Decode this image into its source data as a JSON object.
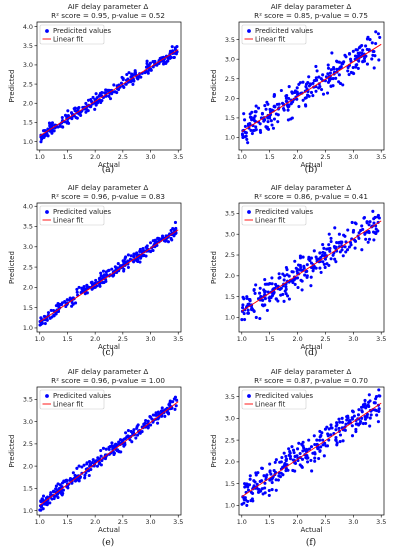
{
  "panel_labels": [
    "(a)",
    "(b)",
    "(c)",
    "(d)",
    "(e)",
    "(f)"
  ],
  "chart_data": [
    {
      "type": "scatter",
      "title": "AIF delay parameter Δ",
      "subtitle": "R² score = 0.95, p-value = 0.52",
      "xlabel": "Actual",
      "ylabel": "Predicted",
      "xlim": [
        0.95,
        3.55
      ],
      "ylim": [
        0.78,
        4.12
      ],
      "xticks": [
        1.0,
        1.5,
        2.0,
        2.5,
        3.0,
        3.5
      ],
      "yticks": [
        1.0,
        1.5,
        2.0,
        2.5,
        3.0,
        3.5,
        4.0
      ],
      "legend": [
        "Predicited values",
        "Linear fit"
      ],
      "legend_position": "top-left",
      "fit_line": {
        "x": [
          1.0,
          3.5
        ],
        "y": [
          1.15,
          3.4
        ]
      },
      "series_colors": {
        "points": "#0000ff",
        "fit": "#ff0000"
      },
      "noise": 0.12,
      "x": [
        1.02,
        1.05,
        1.09,
        1.12,
        1.15,
        1.19,
        1.22,
        1.26,
        1.3,
        1.33,
        1.37,
        1.41,
        1.45,
        1.5,
        1.54,
        1.58,
        1.62,
        1.67,
        1.71,
        1.76,
        1.8,
        1.85,
        1.9,
        1.95,
        2.0,
        2.05,
        2.1,
        2.15,
        2.2,
        2.25,
        2.3,
        2.35,
        2.4,
        2.45,
        2.5,
        2.55,
        2.6,
        2.65,
        2.7,
        2.75,
        2.8,
        2.85,
        2.9,
        2.95,
        3.0,
        3.05,
        3.1,
        3.15,
        3.2,
        3.25,
        3.3,
        3.35,
        3.4,
        3.45
      ],
      "y": [
        1.12,
        1.1,
        1.18,
        1.22,
        1.15,
        1.3,
        1.26,
        1.28,
        1.42,
        1.38,
        1.4,
        1.55,
        1.52,
        1.58,
        1.62,
        1.6,
        1.7,
        1.75,
        1.72,
        1.8,
        1.85,
        1.82,
        1.92,
        1.98,
        2.0,
        2.05,
        2.02,
        2.15,
        2.2,
        2.18,
        2.25,
        2.3,
        2.38,
        2.42,
        2.45,
        2.5,
        2.55,
        2.6,
        2.58,
        2.72,
        2.7,
        2.78,
        2.8,
        2.82,
        2.9,
        2.95,
        3.0,
        3.05,
        3.1,
        3.15,
        3.2,
        3.25,
        3.3,
        3.4
      ]
    },
    {
      "type": "scatter",
      "title": "AIF delay parameter Δ",
      "subtitle": "R² score = 0.85, p-value = 0.75",
      "xlabel": "Actual",
      "ylabel": "Predicted",
      "xlim": [
        0.95,
        3.55
      ],
      "ylim": [
        0.68,
        3.95
      ],
      "xticks": [
        1.0,
        1.5,
        2.0,
        2.5,
        3.0,
        3.5
      ],
      "yticks": [
        1.0,
        1.5,
        2.0,
        2.5,
        3.0,
        3.5
      ],
      "legend": [
        "Predicited values",
        "Linear fit"
      ],
      "legend_position": "top-left",
      "fit_line": {
        "x": [
          1.0,
          3.5
        ],
        "y": [
          1.15,
          3.38
        ]
      },
      "series_colors": {
        "points": "#0000ff",
        "fit": "#ff0000"
      },
      "noise": 0.3,
      "x": [
        1.02,
        1.05,
        1.09,
        1.12,
        1.15,
        1.19,
        1.22,
        1.26,
        1.3,
        1.33,
        1.37,
        1.41,
        1.45,
        1.5,
        1.54,
        1.58,
        1.62,
        1.67,
        1.71,
        1.76,
        1.8,
        1.85,
        1.9,
        1.95,
        2.0,
        2.05,
        2.1,
        2.15,
        2.2,
        2.25,
        2.3,
        2.35,
        2.4,
        2.45,
        2.5,
        2.55,
        2.6,
        2.65,
        2.7,
        2.75,
        2.8,
        2.85,
        2.9,
        2.95,
        3.0,
        3.05,
        3.1,
        3.15,
        3.2,
        3.25,
        3.3,
        3.35,
        3.4,
        3.45
      ],
      "y": [
        1.0,
        1.45,
        0.95,
        1.3,
        1.6,
        1.1,
        1.5,
        1.2,
        1.75,
        1.35,
        1.6,
        1.45,
        1.9,
        1.55,
        1.7,
        2.05,
        1.6,
        1.85,
        2.2,
        1.7,
        2.0,
        2.3,
        1.9,
        2.15,
        2.1,
        2.4,
        1.95,
        2.3,
        2.55,
        2.15,
        2.45,
        2.7,
        2.3,
        2.6,
        2.45,
        2.85,
        2.5,
        2.75,
        2.95,
        2.6,
        2.9,
        3.1,
        2.7,
        3.0,
        3.2,
        2.85,
        3.1,
        3.35,
        2.95,
        3.25,
        3.5,
        3.1,
        3.4,
        3.65
      ]
    },
    {
      "type": "scatter",
      "title": "AIF delay parameter Δ",
      "subtitle": "R² score = 0.96, p-value = 0.83",
      "xlabel": "Actual",
      "ylabel": "Predicted",
      "xlim": [
        0.95,
        3.55
      ],
      "ylim": [
        0.9,
        4.08
      ],
      "xticks": [
        1.0,
        1.5,
        2.0,
        2.5,
        3.0,
        3.5
      ],
      "yticks": [
        1.0,
        1.5,
        2.0,
        2.5,
        3.0,
        3.5,
        4.0
      ],
      "legend": [
        "Predicited values",
        "Linear fit"
      ],
      "legend_position": "top-left",
      "fit_line": {
        "x": [
          1.0,
          3.5
        ],
        "y": [
          1.15,
          3.42
        ]
      },
      "series_colors": {
        "points": "#0000ff",
        "fit": "#ff0000"
      },
      "noise": 0.1,
      "x": [
        1.02,
        1.05,
        1.09,
        1.12,
        1.15,
        1.19,
        1.22,
        1.26,
        1.3,
        1.33,
        1.37,
        1.41,
        1.45,
        1.5,
        1.54,
        1.58,
        1.62,
        1.67,
        1.71,
        1.76,
        1.8,
        1.85,
        1.9,
        1.95,
        2.0,
        2.05,
        2.1,
        2.15,
        2.2,
        2.25,
        2.3,
        2.35,
        2.4,
        2.45,
        2.5,
        2.55,
        2.6,
        2.65,
        2.7,
        2.75,
        2.8,
        2.85,
        2.9,
        2.95,
        3.0,
        3.05,
        3.1,
        3.15,
        3.2,
        3.25,
        3.3,
        3.35,
        3.4,
        3.45
      ],
      "y": [
        1.25,
        1.2,
        1.28,
        1.22,
        1.3,
        1.24,
        1.27,
        1.3,
        1.55,
        1.6,
        1.58,
        1.62,
        1.65,
        1.6,
        1.68,
        1.7,
        1.72,
        1.95,
        2.0,
        1.98,
        2.02,
        2.05,
        2.0,
        2.08,
        2.1,
        2.12,
        2.35,
        2.4,
        2.38,
        2.42,
        2.45,
        2.4,
        2.48,
        2.5,
        2.52,
        2.75,
        2.8,
        2.78,
        2.82,
        2.85,
        2.8,
        2.88,
        2.9,
        2.92,
        3.1,
        3.15,
        3.12,
        3.18,
        3.2,
        3.15,
        3.22,
        3.3,
        3.45,
        3.6
      ]
    },
    {
      "type": "scatter",
      "title": "AIF delay parameter Δ",
      "subtitle": "R² score = 0.86, p-value = 0.41",
      "xlabel": "Actual",
      "ylabel": "Predicted",
      "xlim": [
        0.95,
        3.55
      ],
      "ylim": [
        0.65,
        3.75
      ],
      "xticks": [
        1.0,
        1.5,
        2.0,
        2.5,
        3.0,
        3.5
      ],
      "yticks": [
        1.0,
        1.5,
        2.0,
        2.5,
        3.0,
        3.5
      ],
      "legend": [
        "Predicited values",
        "Linear fit"
      ],
      "legend_position": "top-left",
      "fit_line": {
        "x": [
          1.0,
          3.5
        ],
        "y": [
          1.15,
          3.32
        ]
      },
      "series_colors": {
        "points": "#0000ff",
        "fit": "#ff0000"
      },
      "noise": 0.28,
      "x": [
        1.02,
        1.05,
        1.09,
        1.12,
        1.15,
        1.19,
        1.22,
        1.26,
        1.3,
        1.33,
        1.37,
        1.41,
        1.45,
        1.5,
        1.54,
        1.58,
        1.62,
        1.67,
        1.71,
        1.76,
        1.8,
        1.85,
        1.9,
        1.95,
        2.0,
        2.05,
        2.1,
        2.15,
        2.2,
        2.25,
        2.3,
        2.35,
        2.4,
        2.45,
        2.5,
        2.55,
        2.6,
        2.65,
        2.7,
        2.75,
        2.8,
        2.85,
        2.9,
        2.95,
        3.0,
        3.05,
        3.1,
        3.15,
        3.2,
        3.25,
        3.3,
        3.35,
        3.4,
        3.45
      ],
      "y": [
        1.3,
        0.95,
        1.5,
        1.1,
        1.4,
        1.2,
        1.65,
        1.0,
        1.45,
        1.7,
        1.3,
        1.55,
        1.8,
        1.4,
        1.95,
        1.6,
        1.75,
        2.05,
        1.7,
        1.9,
        2.2,
        1.85,
        2.1,
        2.35,
        1.95,
        2.25,
        2.45,
        2.1,
        2.4,
        2.2,
        2.6,
        2.35,
        2.55,
        2.75,
        2.4,
        2.65,
        2.9,
        2.55,
        2.8,
        3.0,
        2.7,
        2.95,
        3.1,
        2.8,
        3.05,
        3.25,
        2.9,
        3.2,
        3.4,
        3.05,
        3.3,
        3.55,
        3.2,
        3.45
      ]
    },
    {
      "type": "scatter",
      "title": "AIF delay parameter Δ",
      "subtitle": "R² score = 0.96, p-value = 1.00",
      "xlabel": "Actual",
      "ylabel": "Predicted",
      "xlim": [
        0.95,
        3.55
      ],
      "ylim": [
        0.9,
        3.78
      ],
      "xticks": [
        1.0,
        1.5,
        2.0,
        2.5,
        3.0,
        3.5
      ],
      "yticks": [
        1.0,
        1.5,
        2.0,
        2.5,
        3.0,
        3.5
      ],
      "legend": [
        "Predicited values",
        "Linear fit"
      ],
      "legend_position": "top-left",
      "fit_line": {
        "x": [
          1.0,
          3.5
        ],
        "y": [
          1.12,
          3.45
        ]
      },
      "series_colors": {
        "points": "#0000ff",
        "fit": "#ff0000"
      },
      "noise": 0.1,
      "x": [
        1.02,
        1.05,
        1.09,
        1.12,
        1.15,
        1.19,
        1.22,
        1.26,
        1.3,
        1.33,
        1.37,
        1.41,
        1.45,
        1.5,
        1.54,
        1.58,
        1.62,
        1.67,
        1.71,
        1.76,
        1.8,
        1.85,
        1.9,
        1.95,
        2.0,
        2.05,
        2.1,
        2.15,
        2.2,
        2.25,
        2.3,
        2.35,
        2.4,
        2.45,
        2.5,
        2.55,
        2.6,
        2.65,
        2.7,
        2.75,
        2.8,
        2.85,
        2.9,
        2.95,
        3.0,
        3.05,
        3.1,
        3.15,
        3.2,
        3.25,
        3.3,
        3.35,
        3.4,
        3.45
      ],
      "y": [
        1.2,
        1.25,
        1.22,
        1.28,
        1.24,
        1.3,
        1.26,
        1.27,
        1.55,
        1.6,
        1.58,
        1.62,
        1.65,
        1.6,
        1.68,
        1.7,
        1.72,
        1.95,
        2.0,
        1.98,
        2.02,
        2.05,
        2.0,
        2.08,
        2.1,
        2.12,
        2.35,
        2.4,
        2.38,
        2.42,
        2.45,
        2.4,
        2.48,
        2.5,
        2.52,
        2.75,
        2.8,
        2.78,
        2.82,
        2.85,
        2.8,
        2.88,
        2.9,
        2.92,
        3.1,
        3.15,
        3.2,
        3.18,
        3.22,
        3.25,
        3.3,
        3.35,
        3.45,
        3.55
      ]
    },
    {
      "type": "scatter",
      "title": "AIF delay parameter Δ",
      "subtitle": "R² score = 0.87, p-value = 0.70",
      "xlabel": "Actual",
      "ylabel": "Predicted",
      "xlim": [
        0.95,
        3.55
      ],
      "ylim": [
        0.78,
        3.72
      ],
      "xticks": [
        1.0,
        1.5,
        2.0,
        2.5,
        3.0,
        3.5
      ],
      "yticks": [
        1.0,
        1.5,
        2.0,
        2.5,
        3.0,
        3.5
      ],
      "legend": [
        "Predicited values",
        "Linear fit"
      ],
      "legend_position": "top-left",
      "fit_line": {
        "x": [
          1.0,
          3.5
        ],
        "y": [
          1.2,
          3.35
        ]
      },
      "series_colors": {
        "points": "#0000ff",
        "fit": "#ff0000"
      },
      "noise": 0.26,
      "x": [
        1.02,
        1.05,
        1.09,
        1.12,
        1.15,
        1.19,
        1.22,
        1.26,
        1.3,
        1.33,
        1.37,
        1.41,
        1.45,
        1.5,
        1.54,
        1.58,
        1.62,
        1.67,
        1.71,
        1.76,
        1.8,
        1.85,
        1.9,
        1.95,
        2.0,
        2.05,
        2.1,
        2.15,
        2.2,
        2.25,
        2.3,
        2.35,
        2.4,
        2.45,
        2.5,
        2.55,
        2.6,
        2.65,
        2.7,
        2.75,
        2.8,
        2.85,
        2.9,
        2.95,
        3.0,
        3.05,
        3.1,
        3.15,
        3.2,
        3.25,
        3.3,
        3.35,
        3.4,
        3.45
      ],
      "y": [
        1.2,
        1.5,
        1.0,
        1.35,
        1.6,
        1.15,
        1.45,
        1.7,
        1.3,
        1.55,
        1.85,
        1.4,
        1.7,
        1.95,
        1.6,
        1.8,
        2.05,
        1.75,
        2.0,
        2.2,
        1.85,
        2.15,
        2.35,
        2.0,
        2.3,
        2.1,
        2.45,
        2.25,
        2.5,
        2.35,
        2.6,
        2.4,
        2.7,
        2.5,
        2.75,
        2.6,
        2.85,
        2.65,
        2.9,
        2.7,
        3.0,
        2.8,
        3.05,
        2.9,
        3.15,
        2.95,
        3.2,
        3.0,
        3.3,
        3.1,
        3.4,
        3.2,
        3.45,
        3.3
      ]
    }
  ]
}
